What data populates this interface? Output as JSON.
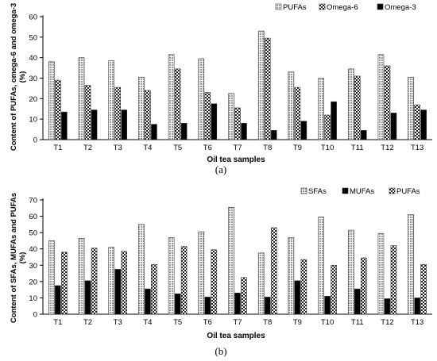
{
  "chart_data": [
    {
      "type": "bar",
      "panel_label": "(a)",
      "xlabel": "Oil tea samples",
      "ylabel": "Content of PUFAs, omega-6 and omega-3 (%)",
      "ylim": [
        0,
        60
      ],
      "yticks": [
        0,
        10,
        20,
        30,
        40,
        50,
        60
      ],
      "grid": false,
      "legend_position": "top-right",
      "categories": [
        "T1",
        "T2",
        "T3",
        "T4",
        "T5",
        "T6",
        "T7",
        "T8",
        "T9",
        "T10",
        "T11",
        "T12",
        "T13"
      ],
      "series": [
        {
          "name": "PUFAs",
          "pattern": "grid",
          "values": [
            38,
            40,
            38.5,
            30.5,
            41.5,
            39.5,
            22.5,
            53,
            33,
            30,
            34.5,
            41.5,
            30.5
          ]
        },
        {
          "name": "Omega-6",
          "pattern": "check",
          "values": [
            29,
            26.5,
            25.5,
            24,
            34.5,
            23,
            15.5,
            49.5,
            25.5,
            12,
            31,
            36,
            17
          ]
        },
        {
          "name": "Omega-3",
          "pattern": "solid",
          "values": [
            13.5,
            14.5,
            14.5,
            7.5,
            8,
            17.5,
            8,
            4.5,
            9,
            18.5,
            4.5,
            13,
            14.5
          ]
        }
      ]
    },
    {
      "type": "bar",
      "panel_label": "(b)",
      "xlabel": "Oil tea samples",
      "ylabel": "Content of SFAs, MUFAs and PUFAs (%)",
      "ylim": [
        0,
        70
      ],
      "yticks": [
        0,
        10,
        20,
        30,
        40,
        50,
        60,
        70
      ],
      "grid": false,
      "legend_position": "top-right",
      "categories": [
        "T1",
        "T2",
        "T3",
        "T4",
        "T5",
        "T6",
        "T7",
        "T8",
        "T9",
        "T10",
        "T11",
        "T12",
        "T13"
      ],
      "series": [
        {
          "name": "SFAs",
          "pattern": "grid",
          "values": [
            45,
            46.5,
            41,
            55,
            47,
            50.5,
            65.5,
            37.5,
            47,
            59.5,
            51.5,
            49.5,
            61
          ]
        },
        {
          "name": "MUFAs",
          "pattern": "solid",
          "values": [
            17.5,
            20.5,
            27.5,
            15.5,
            12.5,
            10.5,
            13,
            10.5,
            20.5,
            11,
            15.5,
            9.5,
            10
          ]
        },
        {
          "name": "PUFAs",
          "pattern": "check",
          "values": [
            38,
            40.5,
            38.5,
            30.5,
            41.5,
            39.5,
            22.5,
            53,
            33.5,
            30,
            34.5,
            42,
            30.5
          ]
        }
      ]
    }
  ]
}
